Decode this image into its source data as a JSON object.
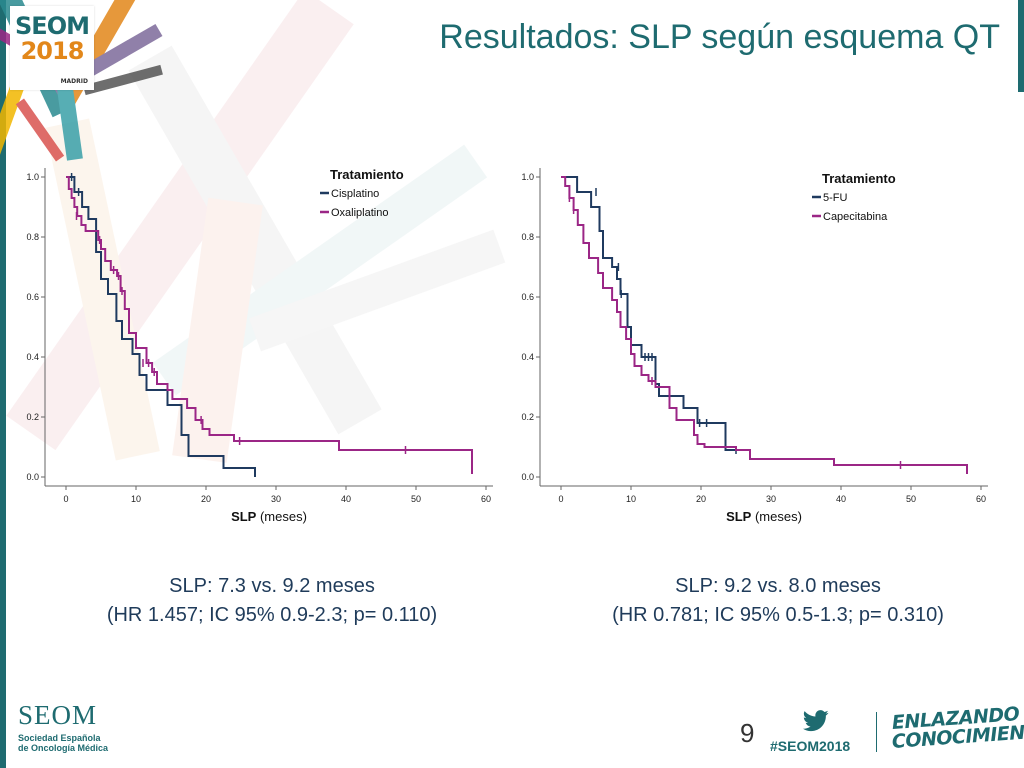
{
  "header": {
    "title": "Resultados: SLP según esquema QT",
    "logo": {
      "line1": "SEOM",
      "line2": "2018",
      "line3": "MADRID"
    }
  },
  "colors": {
    "primary_teal": "#1e6b70",
    "curve_navy": "#1f3a5f",
    "curve_magenta": "#9b2686",
    "stat_text": "#1f3b5a",
    "accent_orange": "#e2871a"
  },
  "chart_data": [
    {
      "type": "line",
      "subtype": "kaplan-meier",
      "xlabel_bold": "SLP",
      "xlabel_rest": "(meses)",
      "ylabel": "",
      "xlim": [
        -3,
        61
      ],
      "ylim": [
        -0.03,
        1.03
      ],
      "x_ticks": [
        0,
        10,
        20,
        30,
        40,
        50,
        60
      ],
      "y_ticks": [
        0.0,
        0.2,
        0.4,
        0.6,
        0.8,
        1.0
      ],
      "y_tick_labels": [
        "0.0",
        "0.2",
        "0.4",
        "0.6",
        "0.8",
        "1.0"
      ],
      "legend_title": "Tratamiento",
      "legend_position": "top-right",
      "series": [
        {
          "name": "Cisplatino",
          "color": "#1f3a5f",
          "steps": [
            [
              0,
              1.0
            ],
            [
              1.2,
              0.95
            ],
            [
              2.3,
              0.9
            ],
            [
              3.2,
              0.86
            ],
            [
              4.3,
              0.75
            ],
            [
              5.0,
              0.66
            ],
            [
              6.0,
              0.61
            ],
            [
              7.2,
              0.52
            ],
            [
              8.0,
              0.46
            ],
            [
              9.5,
              0.41
            ],
            [
              10.5,
              0.34
            ],
            [
              11.5,
              0.29
            ],
            [
              14.5,
              0.24
            ],
            [
              16.5,
              0.14
            ],
            [
              17.5,
              0.07
            ],
            [
              22.5,
              0.03
            ],
            [
              27.0,
              0.0
            ]
          ],
          "censored": [
            [
              0.8,
              1.0
            ],
            [
              1.8,
              0.95
            ]
          ]
        },
        {
          "name": "Oxaliplatino",
          "color": "#9b2686",
          "steps": [
            [
              0,
              1.0
            ],
            [
              0.4,
              0.96
            ],
            [
              0.8,
              0.93
            ],
            [
              1.2,
              0.9
            ],
            [
              1.6,
              0.87
            ],
            [
              2.2,
              0.84
            ],
            [
              2.8,
              0.82
            ],
            [
              4.6,
              0.79
            ],
            [
              5.0,
              0.76
            ],
            [
              5.6,
              0.72
            ],
            [
              6.4,
              0.69
            ],
            [
              7.3,
              0.67
            ],
            [
              7.8,
              0.62
            ],
            [
              8.4,
              0.56
            ],
            [
              9.0,
              0.48
            ],
            [
              10.0,
              0.43
            ],
            [
              11.5,
              0.38
            ],
            [
              12.3,
              0.35
            ],
            [
              13.0,
              0.31
            ],
            [
              14.5,
              0.29
            ],
            [
              15.2,
              0.26
            ],
            [
              17.3,
              0.23
            ],
            [
              18.5,
              0.19
            ],
            [
              19.5,
              0.16
            ],
            [
              20.5,
              0.14
            ],
            [
              24.0,
              0.12
            ],
            [
              39.0,
              0.09
            ],
            [
              58.0,
              0.01
            ]
          ],
          "censored": [
            [
              1.5,
              0.87
            ],
            [
              4.8,
              0.79
            ],
            [
              6.8,
              0.69
            ],
            [
              7.5,
              0.67
            ],
            [
              8.0,
              0.62
            ],
            [
              11.0,
              0.38
            ],
            [
              11.8,
              0.38
            ],
            [
              12.6,
              0.35
            ],
            [
              19.3,
              0.19
            ],
            [
              24.8,
              0.12
            ],
            [
              48.5,
              0.09
            ]
          ]
        }
      ]
    },
    {
      "type": "line",
      "subtype": "kaplan-meier",
      "xlabel_bold": "SLP",
      "xlabel_rest": "(meses)",
      "ylabel": "",
      "xlim": [
        -3,
        61
      ],
      "ylim": [
        -0.03,
        1.03
      ],
      "x_ticks": [
        0,
        10,
        20,
        30,
        40,
        50,
        60
      ],
      "y_ticks": [
        0.0,
        0.2,
        0.4,
        0.6,
        0.8,
        1.0
      ],
      "y_tick_labels": [
        "0.0",
        "0.2",
        "0.4",
        "0.6",
        "0.8",
        "1.0"
      ],
      "legend_title": "Tratamiento",
      "legend_position": "top-right",
      "series": [
        {
          "name": "5-FU",
          "color": "#1f3a5f",
          "steps": [
            [
              0,
              1.0
            ],
            [
              2.3,
              0.95
            ],
            [
              4.3,
              0.9
            ],
            [
              5.5,
              0.82
            ],
            [
              6.0,
              0.73
            ],
            [
              7.3,
              0.7
            ],
            [
              8.0,
              0.66
            ],
            [
              8.5,
              0.61
            ],
            [
              9.5,
              0.5
            ],
            [
              10.0,
              0.44
            ],
            [
              11.5,
              0.4
            ],
            [
              13.5,
              0.31
            ],
            [
              14.0,
              0.27
            ],
            [
              15.5,
              0.27
            ],
            [
              17.5,
              0.23
            ],
            [
              19.5,
              0.18
            ],
            [
              23.5,
              0.09
            ],
            [
              25.0,
              0.09
            ]
          ],
          "censored": [
            [
              5.0,
              0.95
            ],
            [
              8.2,
              0.7
            ],
            [
              8.6,
              0.61
            ],
            [
              12.0,
              0.4
            ],
            [
              12.5,
              0.4
            ],
            [
              13.0,
              0.4
            ],
            [
              19.8,
              0.18
            ],
            [
              20.8,
              0.18
            ],
            [
              25.0,
              0.09
            ]
          ]
        },
        {
          "name": "Capecitabina",
          "color": "#9b2686",
          "steps": [
            [
              0,
              1.0
            ],
            [
              0.6,
              0.97
            ],
            [
              1.2,
              0.93
            ],
            [
              1.8,
              0.89
            ],
            [
              2.4,
              0.84
            ],
            [
              3.2,
              0.78
            ],
            [
              4.0,
              0.73
            ],
            [
              5.3,
              0.68
            ],
            [
              6.0,
              0.63
            ],
            [
              7.3,
              0.59
            ],
            [
              8.0,
              0.55
            ],
            [
              8.5,
              0.5
            ],
            [
              9.3,
              0.46
            ],
            [
              10.0,
              0.41
            ],
            [
              10.5,
              0.37
            ],
            [
              11.5,
              0.34
            ],
            [
              12.5,
              0.32
            ],
            [
              13.5,
              0.3
            ],
            [
              15.5,
              0.23
            ],
            [
              16.5,
              0.19
            ],
            [
              19.0,
              0.14
            ],
            [
              19.5,
              0.11
            ],
            [
              20.5,
              0.1
            ],
            [
              25.0,
              0.09
            ],
            [
              27.0,
              0.06
            ],
            [
              39.0,
              0.04
            ],
            [
              58.0,
              0.01
            ]
          ],
          "censored": [
            [
              1.2,
              0.93
            ],
            [
              1.8,
              0.89
            ],
            [
              13.0,
              0.32
            ],
            [
              48.5,
              0.04
            ]
          ]
        }
      ]
    }
  ],
  "stats": {
    "left": {
      "line1": "SLP: 7.3 vs. 9.2 meses",
      "line2": "(HR 1.457; IC 95% 0.9-2.3; p= 0.110)"
    },
    "right": {
      "line1": "SLP: 9.2 vs. 8.0 meses",
      "line2": "(HR 0.781; IC 95% 0.5-1.3; p= 0.310)"
    }
  },
  "footer": {
    "seom": "SEOM",
    "seom_sub1": "Sociedad Española",
    "seom_sub2": "de Oncología Médica",
    "page_number": "9",
    "hashtag": "#SEOM2018",
    "tagline_1": "ENLAZANDO",
    "tagline_2": "CONOCIMIENTO",
    "twitter_icon": "twitter-icon"
  }
}
